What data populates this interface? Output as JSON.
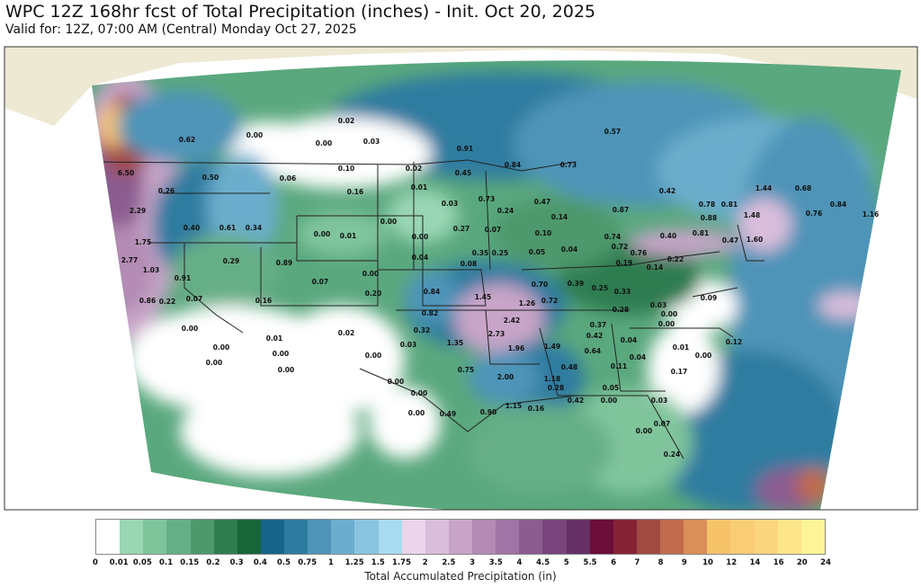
{
  "header": {
    "title": "WPC 12Z 168hr fcst of Total Precipitation (inches) - Init. Oct 20, 2025",
    "subtitle": "Valid for: 12Z, 07:00 AM (Central) Monday Oct 27, 2025"
  },
  "map": {
    "region": "Contiguous United States",
    "colors": {
      "land_outside": "#ede9d3",
      "ocean_outside": "#ffffff",
      "borders": "#111111"
    },
    "point_values": [
      "0.02",
      "0.00",
      "0.00",
      "0.03",
      "0.62",
      "0.91",
      "0.57",
      "0.10",
      "0.02",
      "0.06",
      "0.50",
      "0.16",
      "0.01",
      "0.45",
      "0.84",
      "0.73",
      "0.42",
      "6.50",
      "0.26",
      "0.03",
      "0.73",
      "2.29",
      "0.40",
      "0.61",
      "0.34",
      "0.00",
      "0.01",
      "0.00",
      "0.00",
      "0.47",
      "0.24",
      "0.14",
      "0.87",
      "0.78",
      "0.88",
      "0.81",
      "1.44",
      "0.68",
      "1.48",
      "0.76",
      "0.84",
      "1.16",
      "1.75",
      "2.77",
      "1.03",
      "0.91",
      "0.29",
      "0.89",
      "0.16",
      "0.07",
      "0.22",
      "0.86",
      "0.07",
      "0.00",
      "0.20",
      "0.04",
      "0.27",
      "0.07",
      "0.10",
      "0.74",
      "0.72",
      "0.40",
      "0.81",
      "0.47",
      "1.60",
      "0.08",
      "0.35",
      "0.25",
      "0.05",
      "0.04",
      "0.76",
      "0.19",
      "0.22",
      "0.14",
      "0.84",
      "1.45",
      "1.26",
      "0.70",
      "0.39",
      "0.25",
      "0.72",
      "0.33",
      "0.28",
      "0.03",
      "0.09",
      "0.82",
      "2.42",
      "0.37",
      "0.00",
      "0.32",
      "2.73",
      "0.42",
      "0.04",
      "0.00",
      "0.12",
      "1.35",
      "1.96",
      "1.49",
      "0.64",
      "0.01",
      "0.00",
      "0.03",
      "0.75",
      "0.48",
      "0.11",
      "0.04",
      "2.00",
      "1.18",
      "0.17",
      "0.00",
      "0.00",
      "0.28",
      "0.05",
      "1.15",
      "0.16",
      "0.42",
      "0.00",
      "0.03",
      "0.00",
      "0.49",
      "0.90",
      "0.07",
      "0.00",
      "0.24",
      "0.00",
      "0.01",
      "0.00",
      "0.00",
      "0.00",
      "0.00",
      "0.02",
      "0.00"
    ]
  },
  "colorbar": {
    "label": "Total Accumulated Precipitation (in)",
    "ticks": [
      "0",
      "0.01",
      "0.05",
      "0.1",
      "0.15",
      "0.2",
      "0.3",
      "0.4",
      "0.5",
      "0.75",
      "1",
      "1.25",
      "1.5",
      "1.75",
      "2",
      "2.5",
      "3",
      "3.5",
      "4",
      "4.5",
      "5",
      "5.5",
      "6",
      "7",
      "8",
      "9",
      "10",
      "12",
      "14",
      "16",
      "20",
      "24"
    ],
    "colors": [
      "#ffffff",
      "#99d6b4",
      "#80c49c",
      "#66af86",
      "#4d986c",
      "#2f7d51",
      "#166638",
      "#176488",
      "#2f7ba0",
      "#4d94b8",
      "#6badcc",
      "#8ac4e0",
      "#a8dbf0",
      "#ead5ea",
      "#d9bedb",
      "#c7a4c8",
      "#b38bb4",
      "#a074a4",
      "#8b5c90",
      "#77457b",
      "#643066",
      "#6b0e38",
      "#852236",
      "#a14a42",
      "#c06b4c",
      "#da8e58",
      "#f6c36a",
      "#f9cd74",
      "#fbd67e",
      "#fde58a",
      "#fdf597"
    ]
  }
}
